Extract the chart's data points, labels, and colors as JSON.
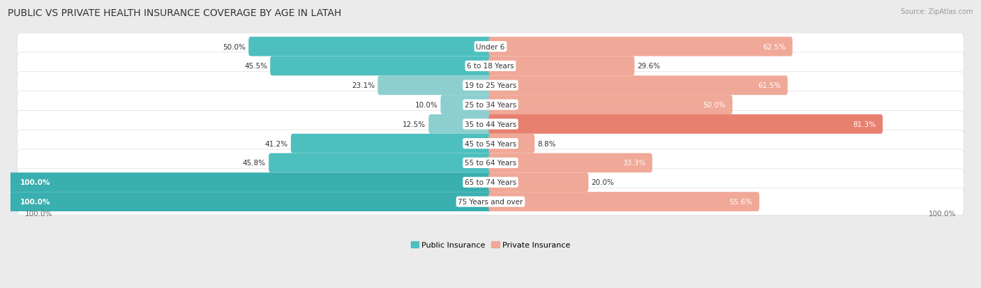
{
  "title": "PUBLIC VS PRIVATE HEALTH INSURANCE COVERAGE BY AGE IN LATAH",
  "source": "Source: ZipAtlas.com",
  "categories": [
    "Under 6",
    "6 to 18 Years",
    "19 to 25 Years",
    "25 to 34 Years",
    "35 to 44 Years",
    "45 to 54 Years",
    "55 to 64 Years",
    "65 to 74 Years",
    "75 Years and over"
  ],
  "public_values": [
    50.0,
    45.5,
    23.1,
    10.0,
    12.5,
    41.2,
    45.8,
    100.0,
    100.0
  ],
  "private_values": [
    62.5,
    29.6,
    61.5,
    50.0,
    81.3,
    8.8,
    33.3,
    20.0,
    55.6
  ],
  "public_color_dark": "#3AAFAF",
  "public_color_mid": "#4DBFBF",
  "public_color_light": "#8DCFCF",
  "private_color_dark": "#D97060",
  "private_color_mid": "#E88070",
  "private_color_light": "#F0A898",
  "bg_color": "#EBEBEB",
  "row_bg": "#FFFFFF",
  "title_fontsize": 10,
  "source_fontsize": 7,
  "label_fontsize": 7.5,
  "category_fontsize": 7.5,
  "legend_fontsize": 8
}
